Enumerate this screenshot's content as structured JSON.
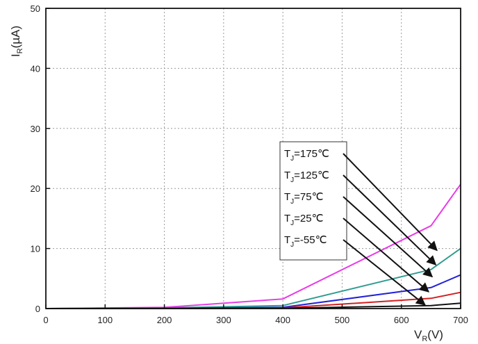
{
  "chart_data": {
    "type": "line",
    "title": "",
    "xlabel": {
      "main": "V",
      "sub": "R",
      "unit": "(V)"
    },
    "ylabel": {
      "main": "I",
      "sub": "R",
      "unit": "(µA)"
    },
    "xlim": [
      0,
      700
    ],
    "ylim": [
      0,
      50
    ],
    "xticks": [
      0,
      100,
      200,
      300,
      400,
      500,
      600,
      700
    ],
    "yticks": [
      0,
      10,
      20,
      30,
      40,
      50
    ],
    "grid": true,
    "grid_style": "dotted",
    "legend_placement": "center-right",
    "series": [
      {
        "name": "175℃",
        "color": "#e83ce8",
        "x": [
          0,
          200,
          400,
          650,
          700
        ],
        "y": [
          0,
          0.2,
          1.6,
          13.8,
          20.7
        ]
      },
      {
        "name": "125℃",
        "color": "#2e9c90",
        "x": [
          0,
          200,
          400,
          650,
          700
        ],
        "y": [
          0,
          0.1,
          0.5,
          6.5,
          10.0
        ]
      },
      {
        "name": "75℃",
        "color": "#2323d8",
        "x": [
          0,
          200,
          400,
          650,
          700
        ],
        "y": [
          0,
          0.05,
          0.2,
          3.5,
          5.6
        ]
      },
      {
        "name": "25℃",
        "color": "#d42020",
        "x": [
          0,
          200,
          400,
          650,
          700
        ],
        "y": [
          0,
          0.02,
          0.1,
          1.7,
          2.7
        ]
      },
      {
        "name": "-55℃",
        "color": "#111111",
        "x": [
          0,
          200,
          400,
          650,
          700
        ],
        "y": [
          0,
          0.01,
          0.05,
          0.5,
          0.9
        ]
      }
    ],
    "annotations": [
      {
        "series": "175℃",
        "label": "T",
        "sub": "J",
        "value": "=175℃",
        "target_x": 660,
        "target_y": 9.7
      },
      {
        "series": "125℃",
        "label": "T",
        "sub": "J",
        "value": "=125℃",
        "target_x": 658,
        "target_y": 7.3
      },
      {
        "series": "75℃",
        "label": "T",
        "sub": "J",
        "value": "=75℃",
        "target_x": 652,
        "target_y": 5.3
      },
      {
        "series": "25℃",
        "label": "T",
        "sub": "J",
        "value": "=25℃",
        "target_x": 646,
        "target_y": 2.8
      },
      {
        "series": "-55℃",
        "label": "T",
        "sub": "J",
        "value": "=-55℃",
        "target_x": 640,
        "target_y": 0.6
      }
    ]
  }
}
